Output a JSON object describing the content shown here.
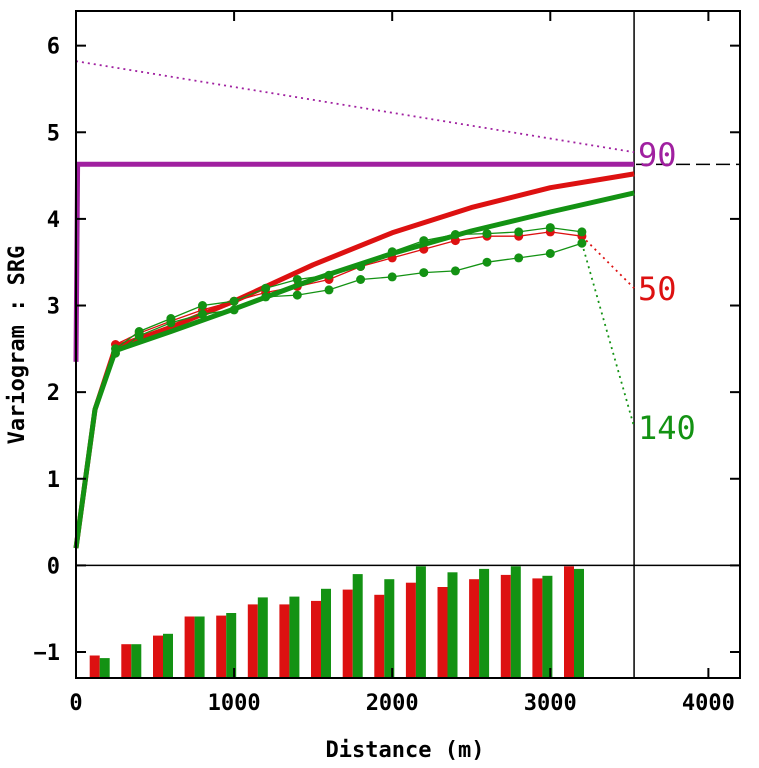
{
  "chart_data": {
    "type": "line",
    "title": "",
    "xlabel": "Distance (m)",
    "ylabel": "Variogram : SRG",
    "xlim": [
      0,
      4200
    ],
    "ylim": [
      -1.3,
      6.4
    ],
    "xticks": [
      0,
      1000,
      2000,
      3000,
      4000
    ],
    "xtick_labels": [
      "0",
      "1000",
      "2000",
      "3000",
      "4000"
    ],
    "yticks": [
      -1,
      0,
      1,
      2,
      3,
      4,
      5,
      6
    ],
    "ytick_labels": [
      "−1",
      "0",
      "1",
      "2",
      "3",
      "4",
      "5",
      "6"
    ],
    "max_distance": 3530,
    "sill": 4.63,
    "colors": {
      "d90": "#a020a0",
      "d50": "#dd1111",
      "d140": "#139213"
    },
    "direction_labels": [
      {
        "text": "90",
        "color": "#a020a0",
        "y": 4.75
      },
      {
        "text": "50",
        "color": "#dd1111",
        "y": 3.2
      },
      {
        "text": "140",
        "color": "#139213",
        "y": 1.6
      }
    ],
    "series": [
      {
        "name": "90",
        "color": "#a020a0",
        "kind": "trend",
        "x": [
          0,
          3530
        ],
        "y": [
          5.82,
          4.77
        ]
      },
      {
        "name": "90 model",
        "color": "#a020a0",
        "kind": "model_step",
        "x": [
          0,
          10,
          3530
        ],
        "y": [
          2.35,
          4.63,
          4.63
        ]
      },
      {
        "name": "50 experimental",
        "color": "#dd1111",
        "kind": "experimental",
        "x": [
          250,
          400,
          600,
          800,
          1000,
          1200,
          1400,
          1600,
          1800,
          2000,
          2200,
          2400,
          2600,
          2800,
          3000,
          3200
        ],
        "y": [
          2.55,
          2.68,
          2.82,
          2.95,
          3.05,
          3.15,
          3.22,
          3.3,
          3.45,
          3.55,
          3.65,
          3.75,
          3.8,
          3.8,
          3.85,
          3.8
        ]
      },
      {
        "name": "50 model",
        "color": "#dd1111",
        "kind": "model",
        "x": [
          0,
          120,
          250,
          600,
          1000,
          1500,
          2000,
          2500,
          3000,
          3530
        ],
        "y": [
          0.2,
          1.8,
          2.52,
          2.75,
          3.05,
          3.47,
          3.84,
          4.13,
          4.36,
          4.52
        ]
      },
      {
        "name": "50 trend",
        "color": "#dd1111",
        "kind": "trend",
        "x": [
          3200,
          3530
        ],
        "y": [
          3.8,
          3.2
        ]
      },
      {
        "name": "140 experimental A",
        "color": "#139213",
        "kind": "experimental",
        "x": [
          250,
          400,
          600,
          800,
          1000,
          1200,
          1400,
          1600,
          1800,
          2000,
          2200,
          2400,
          2600,
          2800,
          3000,
          3200
        ],
        "y": [
          2.5,
          2.7,
          2.85,
          3.0,
          3.05,
          3.2,
          3.3,
          3.35,
          3.45,
          3.62,
          3.75,
          3.82,
          3.83,
          3.85,
          3.9,
          3.85
        ]
      },
      {
        "name": "140 experimental B",
        "color": "#139213",
        "kind": "experimental",
        "x": [
          250,
          400,
          600,
          800,
          1000,
          1200,
          1400,
          1600,
          1800,
          2000,
          2200,
          2400,
          2600,
          2800,
          3000,
          3200
        ],
        "y": [
          2.45,
          2.65,
          2.8,
          2.9,
          2.95,
          3.1,
          3.12,
          3.18,
          3.3,
          3.33,
          3.38,
          3.4,
          3.5,
          3.55,
          3.6,
          3.72
        ]
      },
      {
        "name": "140 model",
        "color": "#139213",
        "kind": "model",
        "x": [
          0,
          120,
          250,
          600,
          1000,
          1500,
          2000,
          2500,
          3000,
          3530
        ],
        "y": [
          0.2,
          1.8,
          2.48,
          2.7,
          2.96,
          3.3,
          3.6,
          3.86,
          4.08,
          4.3
        ]
      },
      {
        "name": "140 trend",
        "color": "#139213",
        "kind": "trend",
        "x": [
          3200,
          3530
        ],
        "y": [
          3.72,
          1.6
        ]
      }
    ],
    "histogram": {
      "base": -1.3,
      "x": [
        150,
        350,
        550,
        750,
        950,
        1150,
        1350,
        1550,
        1750,
        1950,
        2150,
        2350,
        2550,
        2750,
        2950,
        3150
      ],
      "series": [
        {
          "name": "50",
          "color": "#dd1111",
          "values": [
            -1.04,
            -0.91,
            -0.81,
            -0.59,
            -0.58,
            -0.45,
            -0.45,
            -0.41,
            -0.28,
            -0.34,
            -0.2,
            -0.25,
            -0.16,
            -0.11,
            -0.15,
            -0.01
          ]
        },
        {
          "name": "140",
          "color": "#139213",
          "values": [
            -1.07,
            -0.91,
            -0.79,
            -0.59,
            -0.55,
            -0.37,
            -0.36,
            -0.27,
            -0.1,
            -0.16,
            -0.01,
            -0.08,
            -0.04,
            -0.01,
            -0.12,
            -0.04
          ]
        }
      ]
    }
  }
}
